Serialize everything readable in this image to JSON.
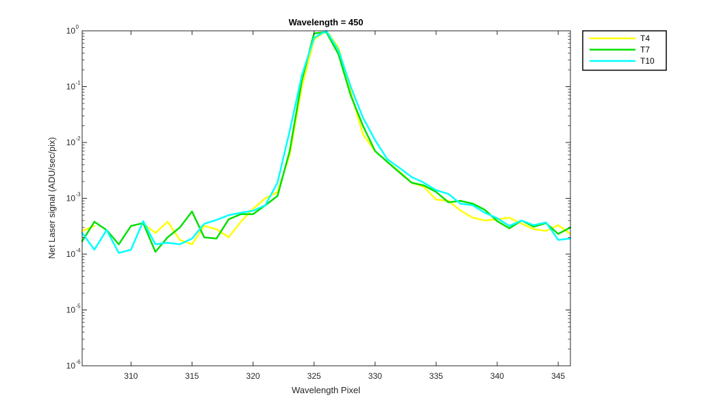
{
  "chart_data": {
    "type": "line",
    "title": "Wavelength = 450",
    "xlabel": "Wavelength Pixel",
    "ylabel": "Net Laser signal  (ADU/sec/pix)",
    "xlim": [
      306,
      346
    ],
    "ylim": [
      1e-06,
      1
    ],
    "yscale": "log",
    "xticks": [
      310,
      315,
      320,
      325,
      330,
      335,
      340,
      345
    ],
    "yticks": [
      {
        "value": 1e-06,
        "base": "10",
        "exp": "-6"
      },
      {
        "value": 1e-05,
        "base": "10",
        "exp": "-5"
      },
      {
        "value": 0.0001,
        "base": "10",
        "exp": "-4"
      },
      {
        "value": 0.001,
        "base": "10",
        "exp": "-3"
      },
      {
        "value": 0.01,
        "base": "10",
        "exp": "-2"
      },
      {
        "value": 0.1,
        "base": "10",
        "exp": "-1"
      },
      {
        "value": 1,
        "base": "10",
        "exp": "0"
      }
    ],
    "legend_position": "outside-top-right",
    "grid": false,
    "x": [
      306,
      307,
      308,
      309,
      310,
      311,
      312,
      313,
      314,
      315,
      316,
      317,
      318,
      319,
      320,
      321,
      322,
      323,
      324,
      325,
      326,
      327,
      328,
      329,
      330,
      331,
      332,
      333,
      334,
      335,
      336,
      337,
      338,
      339,
      340,
      341,
      342,
      343,
      344,
      345,
      346
    ],
    "series": [
      {
        "name": "T4",
        "color": "#ffff00",
        "values": [
          0.00026,
          0.00032,
          null,
          0.00034,
          null,
          0.00035,
          0.00024,
          0.00038,
          0.00018,
          0.00015,
          0.00032,
          0.00028,
          0.0002,
          0.00038,
          0.00065,
          0.001,
          0.0013,
          0.006,
          0.1,
          0.7,
          1.0,
          0.5,
          0.08,
          0.014,
          0.007,
          0.0045,
          0.003,
          0.0019,
          0.0016,
          0.00095,
          0.0009,
          0.0006,
          0.00045,
          0.0004,
          0.00042,
          0.00045,
          0.00035,
          0.00028,
          0.00026,
          0.00033,
          0.00023
        ]
      },
      {
        "name": "T7",
        "color": "#00e000",
        "values": [
          0.00017,
          0.00038,
          0.00027,
          0.00015,
          0.00032,
          0.00036,
          0.00011,
          0.0002,
          0.0003,
          0.00058,
          0.0002,
          0.00019,
          0.00042,
          0.00052,
          0.00052,
          0.00075,
          0.0011,
          0.007,
          0.13,
          0.9,
          0.95,
          0.38,
          0.07,
          0.02,
          0.007,
          0.0045,
          0.0029,
          0.0019,
          0.0017,
          0.0013,
          0.00085,
          0.0009,
          0.0008,
          0.00062,
          0.00039,
          0.00029,
          0.0004,
          0.00031,
          0.00036,
          0.00023,
          0.0003
        ]
      },
      {
        "name": "T10",
        "color": "#00ffff",
        "values": [
          0.00024,
          0.00012,
          0.00027,
          0.000105,
          0.00012,
          0.00039,
          0.00015,
          0.00016,
          0.00015,
          0.00019,
          0.00035,
          0.00041,
          0.0005,
          0.00055,
          0.0006,
          0.00075,
          0.0019,
          0.016,
          0.16,
          0.75,
          1.0,
          0.45,
          0.1,
          0.028,
          0.011,
          0.005,
          0.0035,
          0.0024,
          0.0019,
          0.0014,
          0.0012,
          0.0008,
          0.00075,
          0.00055,
          0.00044,
          0.00032,
          0.0004,
          0.00033,
          0.00037,
          0.00018,
          0.00019
        ]
      }
    ]
  }
}
